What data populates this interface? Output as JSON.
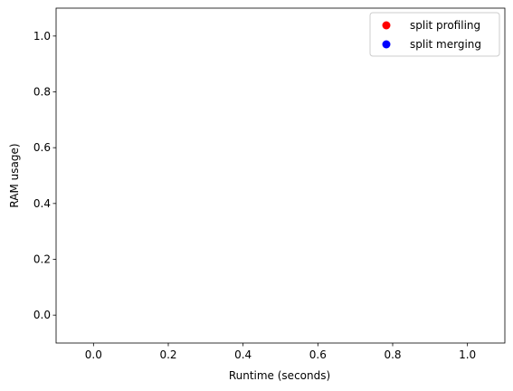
{
  "chart_data": {
    "type": "scatter",
    "title": "",
    "xlabel": "Runtime (seconds)",
    "ylabel": "RAM usage)",
    "xlim": [
      -0.1,
      1.1
    ],
    "ylim": [
      -0.1,
      1.1
    ],
    "xticks": [
      0.0,
      0.2,
      0.4,
      0.6,
      0.8,
      1.0
    ],
    "xtick_labels": [
      "0.0",
      "0.2",
      "0.4",
      "0.6",
      "0.8",
      "1.0"
    ],
    "yticks": [
      0.0,
      0.2,
      0.4,
      0.6,
      0.8,
      1.0
    ],
    "ytick_labels": [
      "0.0",
      "0.2",
      "0.4",
      "0.6",
      "0.8",
      "1.0"
    ],
    "grid": false,
    "legend_position": "top-right",
    "series": [
      {
        "name": "split profiling",
        "color": "#ff0000",
        "x": [],
        "y": []
      },
      {
        "name": "split merging",
        "color": "#0000ff",
        "x": [],
        "y": []
      }
    ]
  }
}
